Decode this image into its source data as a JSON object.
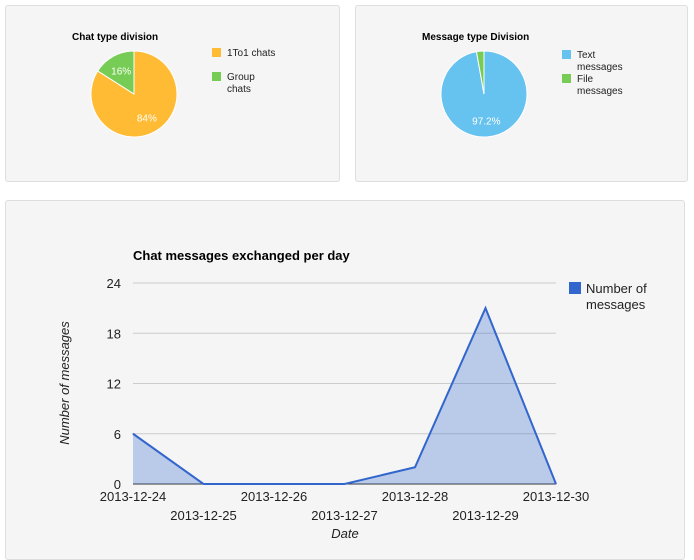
{
  "chart_data": [
    {
      "type": "pie",
      "title": "Chat type division",
      "slices": [
        {
          "label": "1To1 chats",
          "value": 84,
          "value_label": "84%",
          "color": "#FFBB33"
        },
        {
          "label": "Group chats",
          "value": 16,
          "value_label": "16%",
          "color": "#77CC55"
        }
      ],
      "legend_position": "right"
    },
    {
      "type": "pie",
      "title": "Message type Division",
      "slices": [
        {
          "label": "Text messages",
          "value": 97.2,
          "value_label": "97.2%",
          "color": "#66C2EE"
        },
        {
          "label": "File messages",
          "value": 2.8,
          "value_label": "",
          "color": "#77CC55"
        }
      ],
      "legend_position": "right"
    },
    {
      "type": "area",
      "title": "Chat messages exchanged per day",
      "xlabel": "Date",
      "ylabel": "Number of messages",
      "x": [
        "2013-12-24",
        "2013-12-25",
        "2013-12-26",
        "2013-12-27",
        "2013-12-28",
        "2013-12-29",
        "2013-12-30"
      ],
      "series": [
        {
          "name": "Number of messages",
          "values": [
            6,
            0,
            0,
            0,
            2,
            21,
            0
          ],
          "color": "#3366CC"
        }
      ],
      "ylim": [
        0,
        24
      ],
      "yticks": [
        0,
        6,
        12,
        18,
        24
      ],
      "grid": true,
      "legend_position": "right"
    }
  ]
}
